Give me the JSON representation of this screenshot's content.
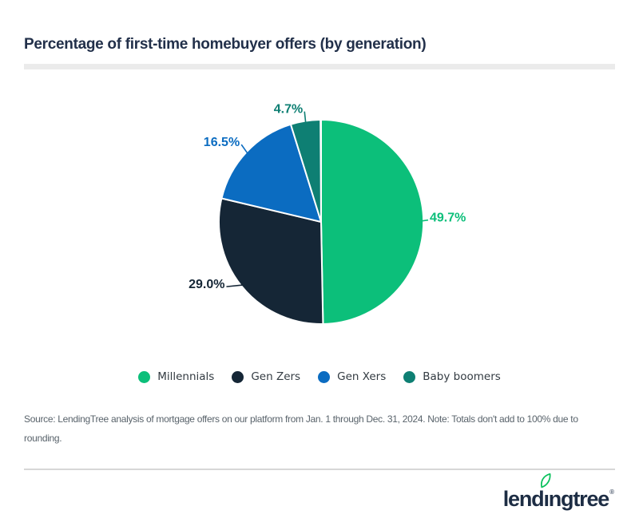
{
  "header": {
    "title": "Percentage of first-time homebuyer offers (by generation)",
    "title_color": "#22304a",
    "underline_color": "#ebebeb"
  },
  "chart_data": {
    "type": "pie",
    "title": "Percentage of first-time homebuyer offers (by generation)",
    "start_angle_deg": 0,
    "direction": "clockwise",
    "total_basis": 100,
    "legend_position": "bottom",
    "slices": [
      {
        "name": "Millennials",
        "value": 49.7,
        "label": "49.7%",
        "color": "#0cbf7a"
      },
      {
        "name": "Gen Zers",
        "value": 29.0,
        "label": "29.0%",
        "color": "#152636"
      },
      {
        "name": "Gen Xers",
        "value": 16.5,
        "label": "16.5%",
        "color": "#0b6cc1"
      },
      {
        "name": "Baby boomers",
        "value": 4.7,
        "label": "4.7%",
        "color": "#0e7f73"
      }
    ]
  },
  "footer": {
    "source_line1": "Source: LendingTree analysis of mortgage offers on our platform from Jan. 1 through Dec. 31, 2024. Note: Totals don't add to 100% due to",
    "source_line2": "rounding.",
    "logo": {
      "pre": "lend",
      "i_letter": "ı",
      "post": "ngtree",
      "reg": "®",
      "leaf_color": "#0bc15d",
      "text_color": "#1d2d44"
    }
  }
}
